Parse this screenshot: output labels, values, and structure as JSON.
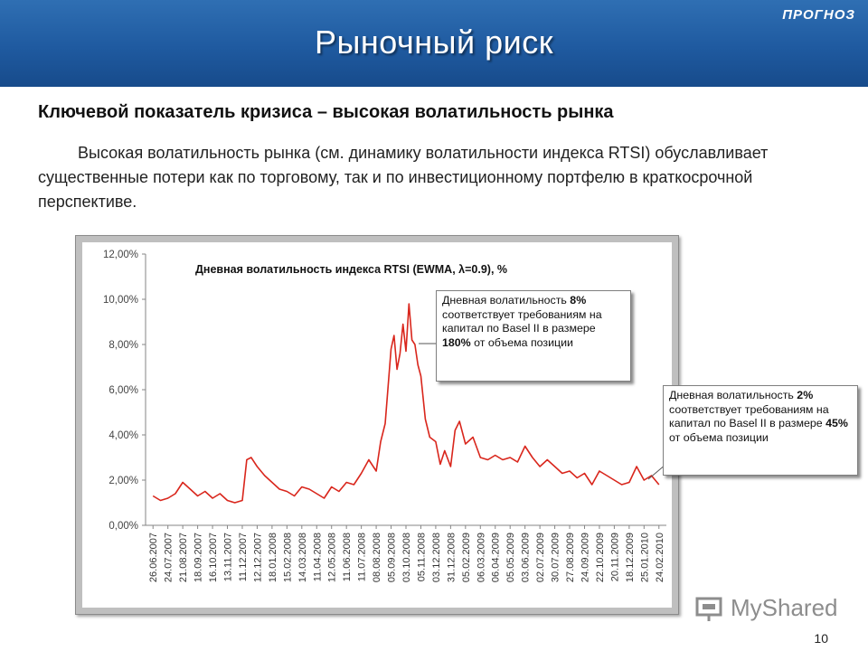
{
  "header": {
    "title": "Рыночный риск",
    "brand": "ПРОГНОЗ"
  },
  "subtitle": "Ключевой показатель кризиса – высокая волатильность рынка",
  "paragraph": "Высокая волатильность рынка (см. динамику волатильности индекса RTSI) обуславливает существенные потери как по торговому, так и по инвестиционному портфелю в краткосрочной  перспективе.",
  "callouts": [
    {
      "prefix": "Дневная волатильность ",
      "value": "8%",
      "middle": " соответствует требованиям на капитал по Basel II в размере ",
      "pct": "180%",
      "suffix": " от объема позиции"
    },
    {
      "prefix": "Дневная волатильность ",
      "value": "2%",
      "middle": " соответствует требованиям на капитал по Basel II в размере ",
      "pct": "45%",
      "suffix": " от объема позиции"
    }
  ],
  "watermark": "MyShared",
  "page_number": "10",
  "colors": {
    "header": "#1f5aa0",
    "series": "#d9261c",
    "frame": "#bfbfbf"
  },
  "chart_data": {
    "type": "line",
    "title": "Дневная волатильность индекса RTSI (EWMA, λ=0.9), %",
    "ylim": [
      0,
      12
    ],
    "y_ticks": [
      "0,00%",
      "2,00%",
      "4,00%",
      "6,00%",
      "8,00%",
      "10,00%",
      "12,00%"
    ],
    "x_ticks": [
      "26.06.2007",
      "24.07.2007",
      "21.08.2007",
      "18.09.2007",
      "16.10.2007",
      "13.11.2007",
      "11.12.2007",
      "12.12.2007",
      "18.01.2008",
      "15.02.2008",
      "14.03.2008",
      "11.04.2008",
      "12.05.2008",
      "11.06.2008",
      "11.07.2008",
      "08.08.2008",
      "05.09.2008",
      "03.10.2008",
      "05.11.2008",
      "03.12.2008",
      "31.12.2008",
      "05.02.2009",
      "06.03.2009",
      "06.04.2009",
      "05.05.2009",
      "03.06.2009",
      "02.07.2009",
      "30.07.2009",
      "27.08.2009",
      "24.09.2009",
      "22.10.2009",
      "20.11.2009",
      "18.12.2009",
      "25.01.2010",
      "24.02.2010"
    ],
    "grid": false,
    "legend": "none",
    "series": [
      {
        "x": [
          0,
          0.5,
          1,
          1.5,
          2,
          2.5,
          3,
          3.5,
          4,
          4.5,
          5,
          5.5,
          6,
          6.3,
          6.6,
          7,
          7.5,
          8,
          8.5,
          9,
          9.5,
          10,
          10.5,
          11,
          11.5,
          12,
          12.5,
          13,
          13.5,
          14,
          14.5,
          15,
          15.3,
          15.6,
          16,
          16.2,
          16.4,
          16.6,
          16.8,
          17,
          17.2,
          17.4,
          17.6,
          17.8,
          18,
          18.3,
          18.6,
          19,
          19.3,
          19.6,
          20,
          20.3,
          20.6,
          21,
          21.5,
          22,
          22.5,
          23,
          23.5,
          24,
          24.5,
          25,
          25.5,
          26,
          26.5,
          27,
          27.5,
          28,
          28.5,
          29,
          29.5,
          30,
          30.5,
          31,
          31.5,
          32,
          32.5,
          33,
          33.5,
          34
        ],
        "y": [
          1.3,
          1.1,
          1.2,
          1.4,
          1.9,
          1.6,
          1.3,
          1.5,
          1.2,
          1.4,
          1.1,
          1.0,
          1.1,
          2.9,
          3.0,
          2.6,
          2.2,
          1.9,
          1.6,
          1.5,
          1.3,
          1.7,
          1.6,
          1.4,
          1.2,
          1.7,
          1.5,
          1.9,
          1.8,
          2.3,
          2.9,
          2.4,
          3.7,
          4.5,
          7.8,
          8.4,
          6.9,
          7.6,
          8.9,
          7.7,
          9.8,
          8.2,
          8.0,
          7.1,
          6.6,
          4.7,
          3.9,
          3.7,
          2.7,
          3.3,
          2.6,
          4.2,
          4.6,
          3.6,
          3.9,
          3.0,
          2.9,
          3.1,
          2.9,
          3.0,
          2.8,
          3.5,
          3.0,
          2.6,
          2.9,
          2.6,
          2.3,
          2.4,
          2.1,
          2.3,
          1.8,
          2.4,
          2.2,
          2.0,
          1.8,
          1.9,
          2.6,
          2.0,
          2.2,
          1.8
        ],
        "anchor_dates_note": ""
      }
    ]
  }
}
